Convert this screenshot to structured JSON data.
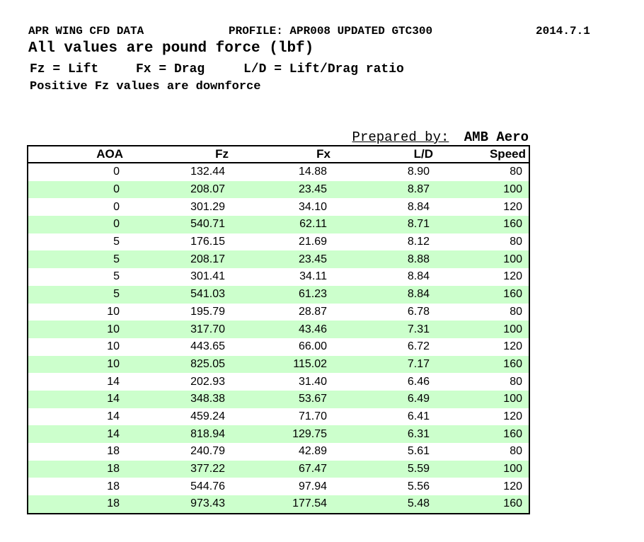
{
  "header": {
    "title": "APR WING CFD DATA",
    "profile": "PROFILE: APR008 UPDATED GTC300",
    "date": "2014.7.1",
    "subtitle": "All values are pound force (lbf)",
    "legend": [
      "Fz = Lift",
      "Fx = Drag",
      "L/D = Lift/Drag ratio"
    ],
    "note": "Positive Fz values are downforce"
  },
  "prepared": {
    "label": "Prepared by:",
    "value": "AMB Aero"
  },
  "table": {
    "columns": [
      "AOA",
      "Fz",
      "Fx",
      "L/D",
      "Speed"
    ],
    "rows": [
      [
        "0",
        "132.44",
        "14.88",
        "8.90",
        "80"
      ],
      [
        "0",
        "208.07",
        "23.45",
        "8.87",
        "100"
      ],
      [
        "0",
        "301.29",
        "34.10",
        "8.84",
        "120"
      ],
      [
        "0",
        "540.71",
        "62.11",
        "8.71",
        "160"
      ],
      [
        "5",
        "176.15",
        "21.69",
        "8.12",
        "80"
      ],
      [
        "5",
        "208.17",
        "23.45",
        "8.88",
        "100"
      ],
      [
        "5",
        "301.41",
        "34.11",
        "8.84",
        "120"
      ],
      [
        "5",
        "541.03",
        "61.23",
        "8.84",
        "160"
      ],
      [
        "10",
        "195.79",
        "28.87",
        "6.78",
        "80"
      ],
      [
        "10",
        "317.70",
        "43.46",
        "7.31",
        "100"
      ],
      [
        "10",
        "443.65",
        "66.00",
        "6.72",
        "120"
      ],
      [
        "10",
        "825.05",
        "115.02",
        "7.17",
        "160"
      ],
      [
        "14",
        "202.93",
        "31.40",
        "6.46",
        "80"
      ],
      [
        "14",
        "348.38",
        "53.67",
        "6.49",
        "100"
      ],
      [
        "14",
        "459.24",
        "71.70",
        "6.41",
        "120"
      ],
      [
        "14",
        "818.94",
        "129.75",
        "6.31",
        "160"
      ],
      [
        "18",
        "240.79",
        "42.89",
        "5.61",
        "80"
      ],
      [
        "18",
        "377.22",
        "67.47",
        "5.59",
        "100"
      ],
      [
        "18",
        "544.76",
        "97.94",
        "5.56",
        "120"
      ],
      [
        "18",
        "973.43",
        "177.54",
        "5.48",
        "160"
      ]
    ]
  },
  "colors": {
    "alt_row_green": "#ccffcc",
    "border_black": "#000000",
    "text_black": "#000000"
  }
}
